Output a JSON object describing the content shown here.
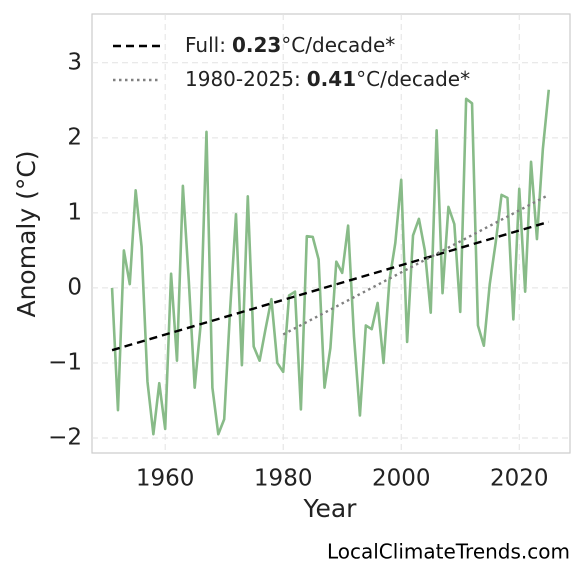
{
  "chart_data": {
    "type": "line",
    "xlabel": "Year",
    "ylabel": "Anomaly (°C)",
    "watermark": "LocalClimateTrends.com",
    "xlim": [
      1947.6,
      2028.6
    ],
    "ylim": [
      -2.2,
      3.65
    ],
    "xticks": [
      1960,
      1980,
      2000,
      2020
    ],
    "yticks": [
      {
        "value": -2,
        "label": "−2"
      },
      {
        "value": -1,
        "label": "−1"
      },
      0,
      1,
      2,
      3
    ],
    "grid": true,
    "legend": "upper left",
    "x": [
      1951,
      1952,
      1953,
      1954,
      1955,
      1956,
      1957,
      1958,
      1959,
      1960,
      1961,
      1962,
      1963,
      1964,
      1965,
      1966,
      1967,
      1968,
      1969,
      1970,
      1971,
      1972,
      1973,
      1974,
      1975,
      1976,
      1977,
      1978,
      1979,
      1980,
      1981,
      1982,
      1983,
      1984,
      1985,
      1986,
      1987,
      1988,
      1989,
      1990,
      1991,
      1992,
      1993,
      1994,
      1995,
      1996,
      1997,
      1998,
      1999,
      2000,
      2001,
      2002,
      2003,
      2004,
      2005,
      2006,
      2007,
      2008,
      2009,
      2010,
      2011,
      2012,
      2013,
      2014,
      2015,
      2016,
      2017,
      2018,
      2019,
      2020,
      2021,
      2022,
      2023,
      2024,
      2025
    ],
    "series": [
      {
        "color": "#88bb88",
        "values": [
          0.0,
          -1.63,
          0.5,
          0.05,
          1.3,
          0.55,
          -1.25,
          -1.95,
          -1.27,
          -1.88,
          0.19,
          -0.97,
          1.36,
          0.1,
          -1.33,
          -0.5,
          2.08,
          -1.33,
          -1.95,
          -1.75,
          -0.3,
          0.98,
          -1.03,
          1.22,
          -0.78,
          -0.97,
          -0.55,
          -0.15,
          -1.0,
          -1.12,
          -0.1,
          -0.05,
          -1.62,
          0.69,
          0.68,
          0.38,
          -1.33,
          -0.8,
          0.35,
          0.2,
          0.83,
          -0.65,
          -1.7,
          -0.5,
          -0.55,
          -0.2,
          -1.0,
          0.1,
          0.6,
          1.44,
          -0.72,
          0.7,
          0.92,
          0.5,
          -0.33,
          2.1,
          -0.07,
          1.08,
          0.85,
          -0.32,
          2.52,
          2.46,
          -0.5,
          -0.77,
          0.05,
          0.6,
          1.24,
          1.2,
          -0.42,
          1.32,
          -0.05,
          1.68,
          0.65,
          1.85,
          2.64
        ]
      }
    ],
    "trends": [
      {
        "label": "Full:",
        "rate": 0.23,
        "unit": "°C/decade*",
        "color": "#000000",
        "dash": "dashed",
        "x": [
          1951,
          2025
        ],
        "values": [
          -0.83,
          0.88
        ]
      },
      {
        "label": "1980-2025:",
        "rate": 0.41,
        "unit": "°C/decade*",
        "color": "#808080",
        "dash": "dotted",
        "x": [
          1980,
          2025
        ],
        "values": [
          -0.62,
          1.24
        ]
      }
    ]
  }
}
